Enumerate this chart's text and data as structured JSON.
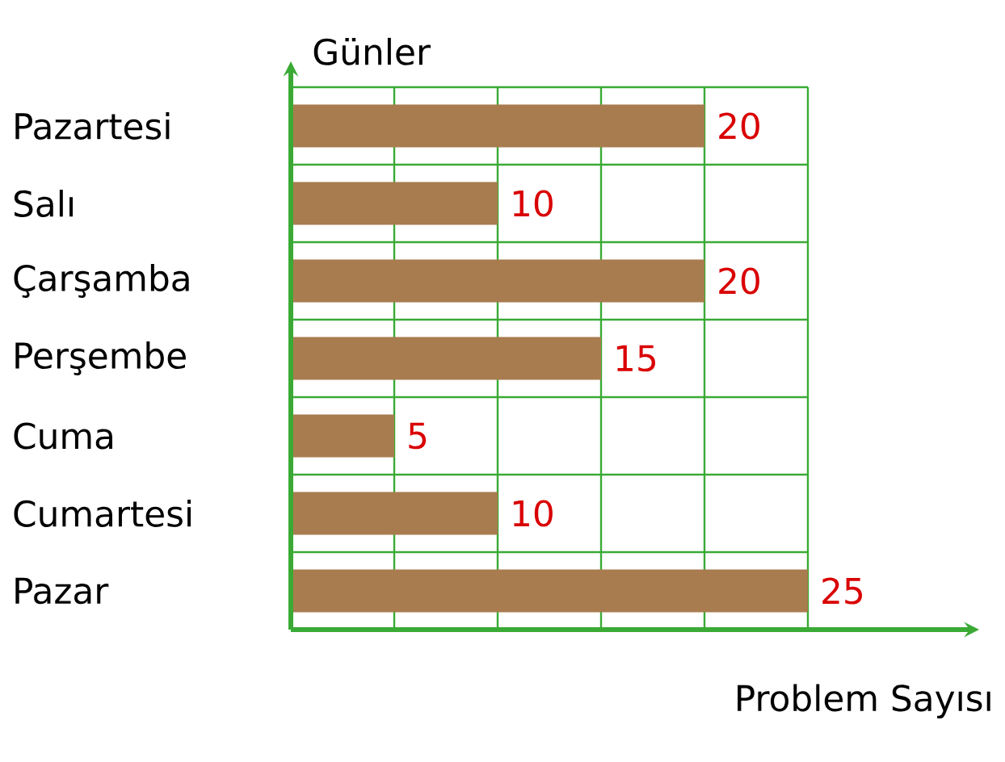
{
  "chart_data": {
    "type": "bar",
    "orientation": "horizontal",
    "xlabel": "Problem Sayısı",
    "ylabel": "Günler",
    "categories": [
      "Pazartesi",
      "Salı",
      "Çarşamba",
      "Perşembe",
      "Cuma",
      "Cumartesi",
      "Pazar"
    ],
    "values": [
      20,
      10,
      20,
      15,
      5,
      10,
      25
    ],
    "color": "#a87c4f",
    "data_labels": true,
    "grid": true,
    "tick_labels": "y",
    "xlim": [
      0,
      25
    ],
    "xticks": [
      {
        "value": 0,
        "label": null
      },
      {
        "value": 5,
        "label": null
      },
      {
        "value": 10,
        "label": null
      },
      {
        "value": 15,
        "label": null
      },
      {
        "value": 20,
        "label": null
      },
      {
        "value": 25,
        "label": null
      }
    ]
  }
}
